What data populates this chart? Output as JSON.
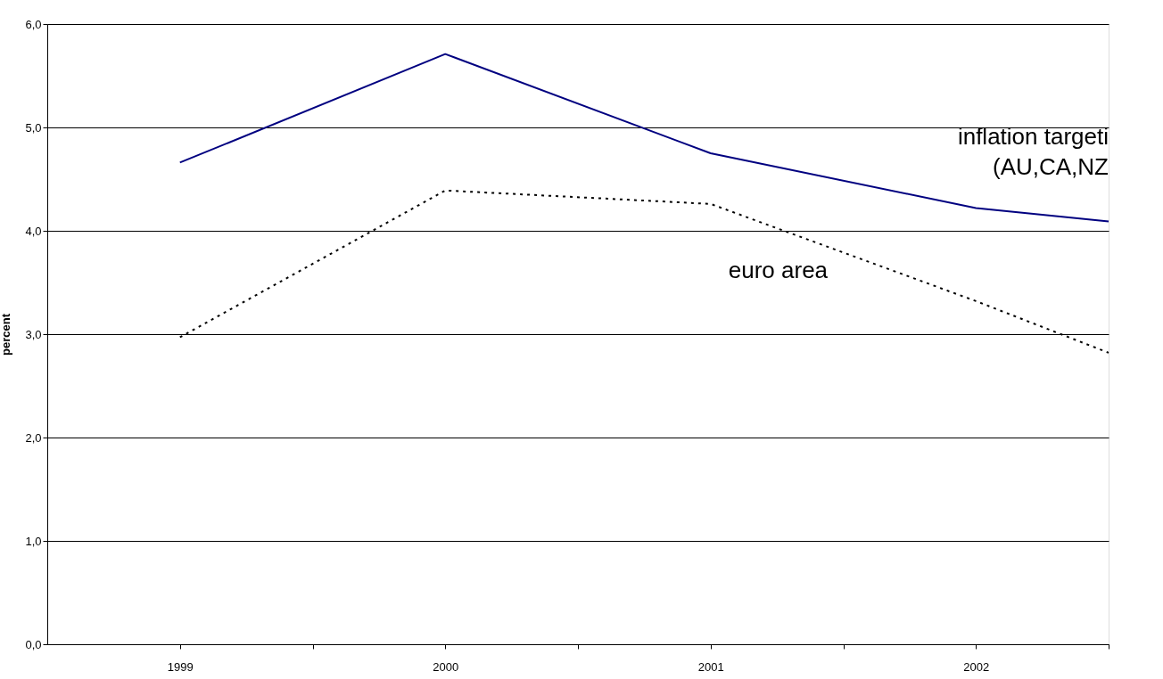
{
  "chart_data": {
    "type": "line",
    "ylabel": "percent",
    "x": [
      1999,
      2000,
      2001,
      2002,
      2002.5
    ],
    "xlim": [
      1998.5,
      2002.5
    ],
    "xticks": [
      1999,
      {
        "value": 1999.5,
        "label": null
      },
      2000,
      {
        "value": 2000.5,
        "label": null
      },
      2001,
      {
        "value": 2001.5,
        "label": null
      },
      2002,
      {
        "value": 2002.5,
        "label": null
      }
    ],
    "ylim": [
      0,
      6
    ],
    "yticks": [
      {
        "value": 0,
        "label": "0,0"
      },
      {
        "value": 1,
        "label": "1,0"
      },
      {
        "value": 2,
        "label": "2,0"
      },
      {
        "value": 3,
        "label": "3,0"
      },
      {
        "value": 4,
        "label": "4,0"
      },
      {
        "value": 5,
        "label": "5,0"
      },
      {
        "value": 6,
        "label": "6,0"
      }
    ],
    "grid": "y",
    "marker": "none",
    "series": [
      {
        "name": "inflation targeti\n(AU,CA,NZ",
        "color": "#000080",
        "line_style": "solid",
        "values": [
          4.66,
          5.71,
          4.75,
          4.22,
          4.09
        ]
      },
      {
        "name": "euro area",
        "color": "#000000",
        "line_style": "dotted",
        "values": [
          2.97,
          4.39,
          4.26,
          3.32,
          2.82
        ]
      }
    ]
  }
}
